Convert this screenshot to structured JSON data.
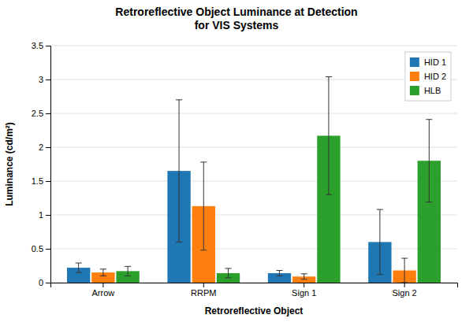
{
  "chart_data": {
    "type": "bar",
    "title": "Retroreflective Object Luminance at Detection\nfor VIS Systems",
    "xlabel": "Retroreflective Object",
    "ylabel": "Luminance (cd/m²)",
    "categories": [
      "Arrow",
      "RRPM",
      "Sign 1",
      "Sign 2"
    ],
    "series": [
      {
        "name": "HID 1",
        "values": [
          0.22,
          1.65,
          0.14,
          0.6
        ],
        "errors": [
          0.07,
          1.05,
          0.04,
          0.48
        ]
      },
      {
        "name": "HID 2",
        "values": [
          0.15,
          1.13,
          0.09,
          0.18
        ],
        "errors": [
          0.05,
          0.65,
          0.04,
          0.18
        ]
      },
      {
        "name": "HLB",
        "values": [
          0.17,
          0.14,
          2.17,
          1.8
        ],
        "errors": [
          0.07,
          0.07,
          0.87,
          0.61
        ]
      }
    ],
    "ylim": [
      0,
      3.5
    ],
    "yticks": [
      0,
      0.5,
      1,
      1.5,
      2,
      2.5,
      3,
      3.5
    ],
    "grid": true,
    "legend": "upper right"
  }
}
